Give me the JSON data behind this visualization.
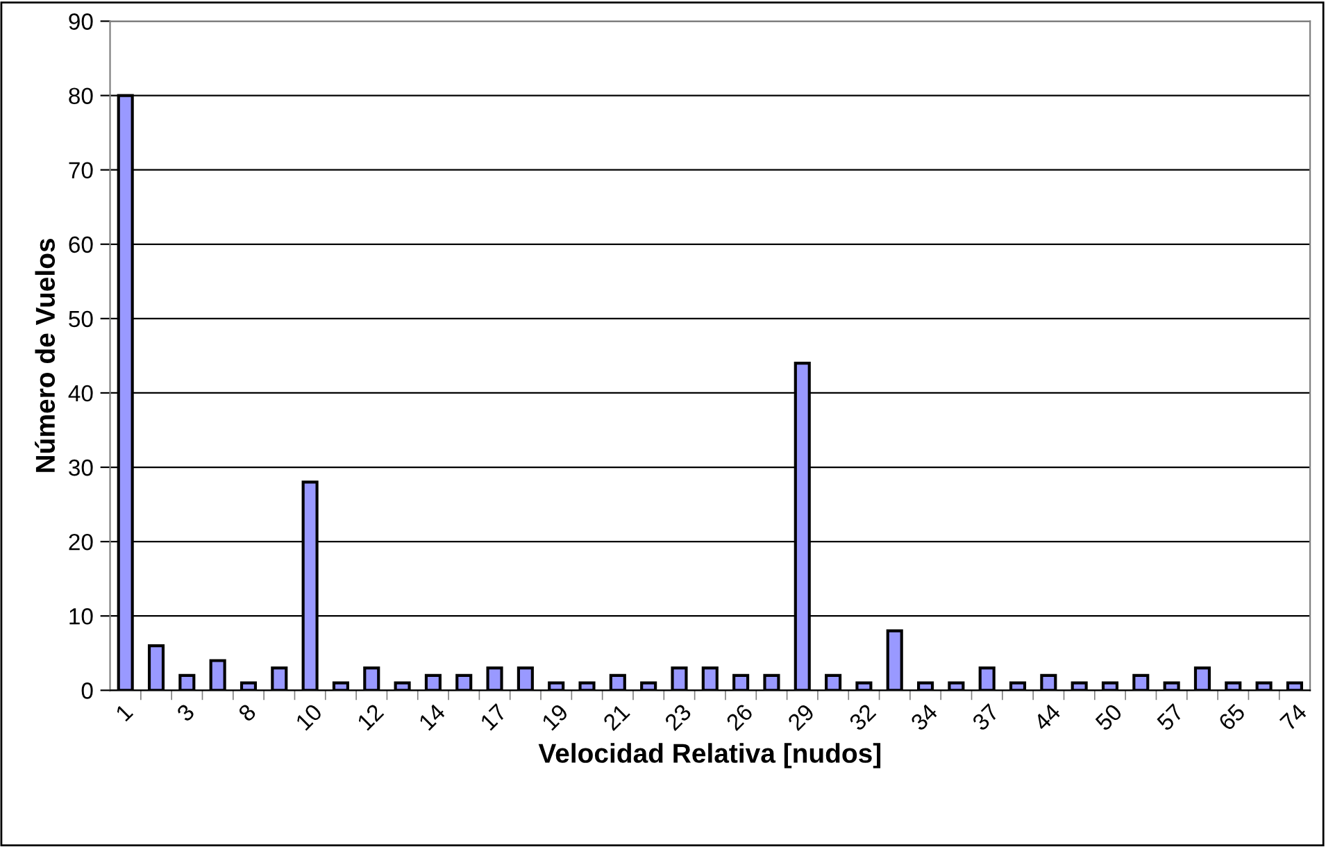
{
  "chart_data": {
    "type": "bar",
    "xlabel": "Velocidad Relativa [nudos]",
    "ylabel": "Número de Vuelos",
    "categories": [
      "1",
      null,
      "3",
      null,
      "8",
      null,
      "10",
      null,
      "12",
      null,
      "14",
      null,
      "17",
      null,
      "19",
      null,
      "21",
      null,
      "23",
      null,
      "26",
      null,
      "29",
      null,
      "32",
      null,
      "34",
      null,
      "37",
      null,
      "44",
      null,
      "50",
      null,
      "57",
      null,
      "65",
      null,
      "74"
    ],
    "values": [
      80,
      6,
      2,
      4,
      1,
      3,
      28,
      1,
      3,
      1,
      2,
      2,
      3,
      3,
      1,
      1,
      2,
      1,
      3,
      3,
      2,
      2,
      44,
      2,
      1,
      8,
      1,
      1,
      3,
      1,
      2,
      1,
      1,
      2,
      1,
      3,
      1,
      1,
      1
    ],
    "color": "#9999ff",
    "ylim": [
      0,
      90
    ],
    "yticks": [
      0,
      10,
      20,
      30,
      40,
      50,
      60,
      70,
      80,
      90
    ],
    "grid": "y"
  }
}
